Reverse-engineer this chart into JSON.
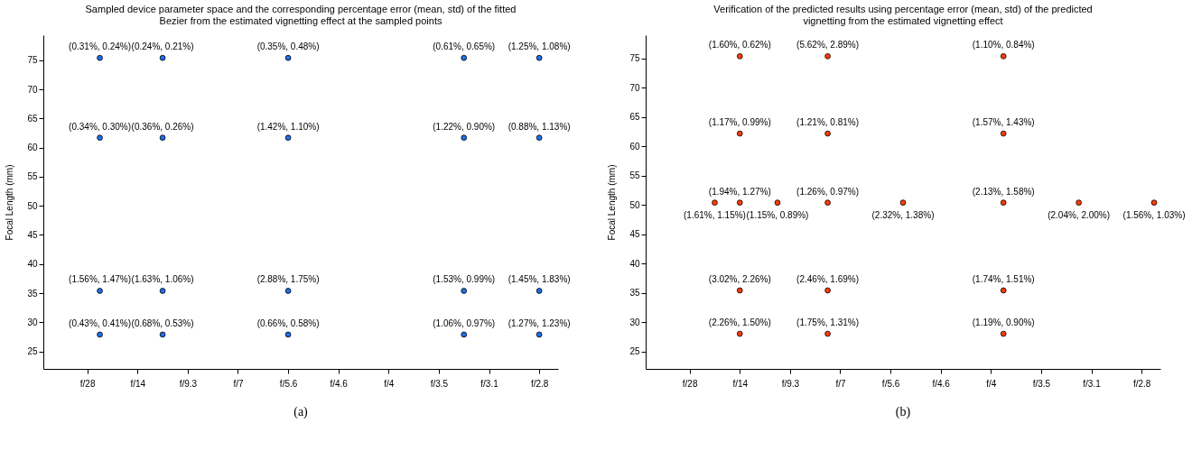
{
  "chart_data": [
    {
      "type": "scatter",
      "title": "Sampled device parameter space and the corresponding percentage error (mean, std) of the fitted Bezier from the estimated vignetting effect at the sampled points",
      "ylabel": "Focal Length (mm)",
      "annotations": [
        "(a)"
      ],
      "marker": "circle",
      "grid": false,
      "categories": [
        null,
        null,
        null,
        "f/28",
        null,
        null,
        null,
        "f/14",
        null,
        null,
        null,
        "f/9.3",
        null,
        null,
        null,
        "f/7",
        null,
        null,
        null,
        "f/5.6",
        null,
        null,
        null,
        "f/4.6",
        null,
        null,
        null,
        "f/4",
        null,
        null,
        null,
        "f/3.5",
        null,
        null,
        null,
        "f/3.1",
        null,
        null,
        null,
        "f/2.8",
        null
      ],
      "ylim": [
        22,
        79.3
      ],
      "yticks": [
        25,
        30,
        35,
        40,
        45,
        50,
        55,
        60,
        65,
        70,
        75
      ],
      "series": [
        {
          "color": "#1f6fe8",
          "values": [
            null,
            null,
            null,
            null,
            75.4,
            null,
            null,
            null,
            null,
            75.4,
            null,
            null,
            null,
            null,
            null,
            null,
            null,
            null,
            null,
            75.4,
            null,
            null,
            null,
            null,
            null,
            null,
            null,
            null,
            null,
            null,
            null,
            null,
            null,
            75.4,
            null,
            null,
            null,
            null,
            null,
            75.4,
            null
          ],
          "value_labels": [
            null,
            null,
            null,
            null,
            "(0.31%, 0.24%)",
            null,
            null,
            null,
            null,
            "(0.24%, 0.21%)",
            null,
            null,
            null,
            null,
            null,
            null,
            null,
            null,
            null,
            "(0.35%, 0.48%)",
            null,
            null,
            null,
            null,
            null,
            null,
            null,
            null,
            null,
            null,
            null,
            null,
            null,
            "(0.61%, 0.65%)",
            null,
            null,
            null,
            null,
            null,
            "(1.25%, 1.08%)",
            null
          ]
        },
        {
          "color": "#1f6fe8",
          "values": [
            null,
            null,
            null,
            null,
            61.7,
            null,
            null,
            null,
            null,
            61.7,
            null,
            null,
            null,
            null,
            null,
            null,
            null,
            null,
            null,
            61.7,
            null,
            null,
            null,
            null,
            null,
            null,
            null,
            null,
            null,
            null,
            null,
            null,
            null,
            61.7,
            null,
            null,
            null,
            null,
            null,
            61.7,
            null
          ],
          "value_labels": [
            null,
            null,
            null,
            null,
            "(0.34%, 0.30%)",
            null,
            null,
            null,
            null,
            "(0.36%, 0.26%)",
            null,
            null,
            null,
            null,
            null,
            null,
            null,
            null,
            null,
            "(1.42%, 1.10%)",
            null,
            null,
            null,
            null,
            null,
            null,
            null,
            null,
            null,
            null,
            null,
            null,
            null,
            "(1.22%, 0.90%)",
            null,
            null,
            null,
            null,
            null,
            "(0.88%, 1.13%)",
            null
          ]
        },
        {
          "color": "#1f6fe8",
          "values": [
            null,
            null,
            null,
            null,
            35.4,
            null,
            null,
            null,
            null,
            35.4,
            null,
            null,
            null,
            null,
            null,
            null,
            null,
            null,
            null,
            35.4,
            null,
            null,
            null,
            null,
            null,
            null,
            null,
            null,
            null,
            null,
            null,
            null,
            null,
            35.4,
            null,
            null,
            null,
            null,
            null,
            35.4,
            null
          ],
          "value_labels": [
            null,
            null,
            null,
            null,
            "(1.56%, 1.47%)",
            null,
            null,
            null,
            null,
            "(1.63%, 1.06%)",
            null,
            null,
            null,
            null,
            null,
            null,
            null,
            null,
            null,
            "(2.88%, 1.75%)",
            null,
            null,
            null,
            null,
            null,
            null,
            null,
            null,
            null,
            null,
            null,
            null,
            null,
            "(1.53%, 0.99%)",
            null,
            null,
            null,
            null,
            null,
            "(1.45%, 1.83%)",
            null
          ]
        },
        {
          "color": "#1f6fe8",
          "values": [
            null,
            null,
            null,
            null,
            27.9,
            null,
            null,
            null,
            null,
            27.9,
            null,
            null,
            null,
            null,
            null,
            null,
            null,
            null,
            null,
            27.9,
            null,
            null,
            null,
            null,
            null,
            null,
            null,
            null,
            null,
            null,
            null,
            null,
            null,
            27.9,
            null,
            null,
            null,
            null,
            null,
            27.9,
            null
          ],
          "value_labels": [
            null,
            null,
            null,
            null,
            "(0.43%, 0.41%)",
            null,
            null,
            null,
            null,
            "(0.68%, 0.53%)",
            null,
            null,
            null,
            null,
            null,
            null,
            null,
            null,
            null,
            "(0.66%, 0.58%)",
            null,
            null,
            null,
            null,
            null,
            null,
            null,
            null,
            null,
            null,
            null,
            null,
            null,
            "(1.06%, 0.97%)",
            null,
            null,
            null,
            null,
            null,
            "(1.27%, 1.23%)",
            null
          ]
        }
      ]
    },
    {
      "type": "scatter",
      "title": "Verification of the predicted results using percentage error (mean, std) of the predicted  vignetting from the estimated vignetting effect",
      "ylabel": "Focal Length (mm)",
      "annotations": [
        "(b)"
      ],
      "marker": "circle",
      "grid": false,
      "categories": [
        null,
        null,
        null,
        "f/28",
        null,
        null,
        null,
        "f/14",
        null,
        null,
        null,
        "f/9.3",
        null,
        null,
        null,
        "f/7",
        null,
        null,
        null,
        "f/5.6",
        null,
        null,
        null,
        "f/4.6",
        null,
        null,
        null,
        "f/4",
        null,
        null,
        null,
        "f/3.5",
        null,
        null,
        null,
        "f/3.1",
        null,
        null,
        null,
        "f/2.8",
        null
      ],
      "ylim": [
        22,
        79
      ],
      "yticks": [
        25,
        30,
        35,
        40,
        45,
        50,
        55,
        60,
        65,
        70,
        75
      ],
      "series": [
        {
          "color": "#ff3b0a",
          "values": [
            null,
            null,
            null,
            null,
            null,
            null,
            null,
            75.4,
            null,
            null,
            null,
            null,
            null,
            null,
            75.4,
            null,
            null,
            null,
            null,
            null,
            null,
            null,
            null,
            null,
            null,
            null,
            null,
            null,
            75.4,
            null,
            null,
            null,
            null,
            null,
            null,
            null,
            null,
            null,
            null,
            null,
            null
          ],
          "value_labels": [
            null,
            null,
            null,
            null,
            null,
            null,
            null,
            "(1.60%, 0.62%)",
            null,
            null,
            null,
            null,
            null,
            null,
            "(5.62%, 2.89%)",
            null,
            null,
            null,
            null,
            null,
            null,
            null,
            null,
            null,
            null,
            null,
            null,
            null,
            "(1.10%, 0.84%)",
            null,
            null,
            null,
            null,
            null,
            null,
            null,
            null,
            null,
            null,
            null,
            null
          ]
        },
        {
          "color": "#ff3b0a",
          "values": [
            null,
            null,
            null,
            null,
            null,
            null,
            null,
            62.2,
            null,
            null,
            null,
            null,
            null,
            null,
            62.2,
            null,
            null,
            null,
            null,
            null,
            null,
            null,
            null,
            null,
            null,
            null,
            null,
            null,
            62.2,
            null,
            null,
            null,
            null,
            null,
            null,
            null,
            null,
            null,
            null,
            null,
            null
          ],
          "value_labels": [
            null,
            null,
            null,
            null,
            null,
            null,
            null,
            "(1.17%, 0.99%)",
            null,
            null,
            null,
            null,
            null,
            null,
            "(1.21%, 0.81%)",
            null,
            null,
            null,
            null,
            null,
            null,
            null,
            null,
            null,
            null,
            null,
            null,
            null,
            "(1.57%, 1.43%)",
            null,
            null,
            null,
            null,
            null,
            null,
            null,
            null,
            null,
            null,
            null,
            null
          ]
        },
        {
          "color": "#ff3b0a",
          "values": [
            null,
            null,
            null,
            null,
            null,
            50.4,
            null,
            50.4,
            null,
            null,
            50.4,
            null,
            null,
            null,
            50.4,
            null,
            null,
            null,
            null,
            null,
            50.4,
            null,
            null,
            null,
            null,
            null,
            null,
            null,
            50.4,
            null,
            null,
            null,
            null,
            null,
            50.4,
            null,
            null,
            null,
            null,
            null,
            50.4
          ],
          "value_labels": [
            null,
            null,
            null,
            null,
            null,
            "(1.61%, 1.15%)",
            null,
            "(1.94%, 1.27%)",
            null,
            null,
            "(1.15%, 0.89%)",
            null,
            null,
            null,
            "(1.26%, 0.97%)",
            null,
            null,
            null,
            null,
            null,
            "(2.32%, 1.38%)",
            null,
            null,
            null,
            null,
            null,
            null,
            null,
            "(2.13%, 1.58%)",
            null,
            null,
            null,
            null,
            null,
            "(2.04%, 2.00%)",
            null,
            null,
            null,
            null,
            null,
            "(1.56%, 1.03%)"
          ]
        },
        {
          "color": "#ff3b0a",
          "values": [
            null,
            null,
            null,
            null,
            null,
            null,
            null,
            35.4,
            null,
            null,
            null,
            null,
            null,
            null,
            35.4,
            null,
            null,
            null,
            null,
            null,
            null,
            null,
            null,
            null,
            null,
            null,
            null,
            null,
            35.4,
            null,
            null,
            null,
            null,
            null,
            null,
            null,
            null,
            null,
            null,
            null,
            null
          ],
          "value_labels": [
            null,
            null,
            null,
            null,
            null,
            null,
            null,
            "(3.02%, 2.26%)",
            null,
            null,
            null,
            null,
            null,
            null,
            "(2.46%, 1.69%)",
            null,
            null,
            null,
            null,
            null,
            null,
            null,
            null,
            null,
            null,
            null,
            null,
            null,
            "(1.74%, 1.51%)",
            null,
            null,
            null,
            null,
            null,
            null,
            null,
            null,
            null,
            null,
            null,
            null
          ]
        },
        {
          "color": "#ff3b0a",
          "values": [
            null,
            null,
            null,
            null,
            null,
            null,
            null,
            28,
            null,
            null,
            null,
            null,
            null,
            null,
            28,
            null,
            null,
            null,
            null,
            null,
            null,
            null,
            null,
            null,
            null,
            null,
            null,
            null,
            28,
            null,
            null,
            null,
            null,
            null,
            null,
            null,
            null,
            null,
            null,
            null,
            null
          ],
          "value_labels": [
            null,
            null,
            null,
            null,
            null,
            null,
            null,
            "(2.26%, 1.50%)",
            null,
            null,
            null,
            null,
            null,
            null,
            "(1.75%, 1.31%)",
            null,
            null,
            null,
            null,
            null,
            null,
            null,
            null,
            null,
            null,
            null,
            null,
            null,
            "(1.19%, 0.90%)",
            null,
            null,
            null,
            null,
            null,
            null,
            null,
            null,
            null,
            null,
            null,
            null
          ]
        }
      ]
    }
  ]
}
